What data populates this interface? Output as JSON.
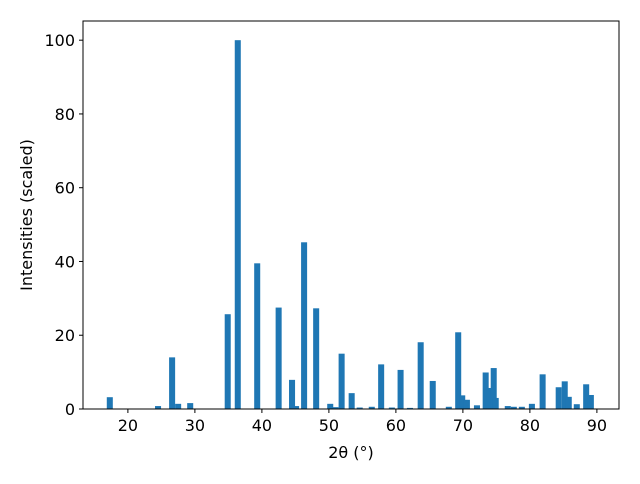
{
  "chart_data": {
    "type": "bar",
    "x_label": "2θ (°)",
    "y_label": "Intensities (scaled)",
    "x": [
      17.3,
      24.5,
      26.6,
      27.5,
      29.3,
      34.9,
      36.4,
      39.3,
      42.5,
      44.5,
      45.1,
      46.3,
      48.1,
      50.2,
      51.0,
      51.9,
      53.4,
      54.6,
      56.4,
      57.8,
      59.4,
      60.7,
      62.1,
      63.7,
      65.5,
      67.9,
      69.3,
      69.9,
      70.6,
      72.1,
      73.4,
      73.9,
      74.6,
      74.9,
      76.7,
      77.6,
      78.8,
      80.3,
      81.9,
      84.3,
      85.2,
      85.8,
      87.0,
      88.4,
      89.1
    ],
    "values": [
      3.2,
      0.8,
      14,
      1.4,
      1.6,
      25.7,
      100,
      39.5,
      27.5,
      7.9,
      0.8,
      45.2,
      27.3,
      1.4,
      0.5,
      15,
      4.3,
      0.4,
      0.6,
      12.1,
      0.4,
      10.6,
      0.3,
      18.1,
      7.6,
      0.6,
      20.8,
      3.7,
      2.5,
      1,
      9.9,
      5.7,
      11.1,
      3,
      0.8,
      0.6,
      0.6,
      1.4,
      9.4,
      5.9,
      7.5,
      3.3,
      1.3,
      6.7,
      3.8
    ],
    "color": "#1f77b4",
    "xlim": [
      13.3,
      93.3
    ],
    "ylim": [
      0,
      105.2
    ],
    "xticks": [
      20,
      30,
      40,
      50,
      60,
      70,
      80,
      90
    ],
    "yticks": [
      0,
      20,
      40,
      60,
      80,
      100
    ]
  }
}
